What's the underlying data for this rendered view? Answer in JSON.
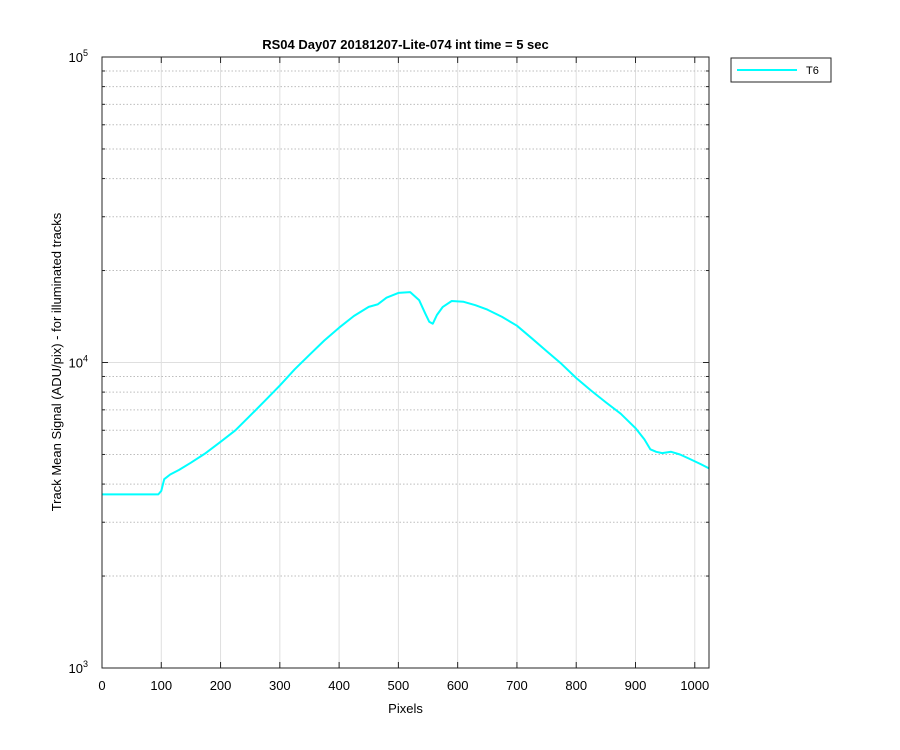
{
  "chart_data": {
    "type": "line",
    "title": "RS04 Day07 20181207-Lite-074 int time = 5 sec",
    "xlabel": "Pixels",
    "ylabel": "Track Mean Signal (ADU/pix) - for illuminated tracks",
    "xlim": [
      0,
      1024
    ],
    "ylim": [
      1000,
      100000
    ],
    "yscale": "log",
    "grid": true,
    "legend_position": "outside-top-right",
    "xticks": [
      "0",
      "100",
      "200",
      "300",
      "400",
      "500",
      "600",
      "700",
      "800",
      "900",
      "1000"
    ],
    "yticks": [
      {
        "value": 1000,
        "base": "10",
        "exp": "3"
      },
      {
        "value": 10000,
        "base": "10",
        "exp": "4"
      },
      {
        "value": 100000,
        "base": "10",
        "exp": "5"
      }
    ],
    "series": [
      {
        "name": "T6",
        "color": "#00ffff",
        "x": [
          0,
          50,
          95,
          100,
          105,
          115,
          130,
          150,
          175,
          200,
          225,
          250,
          275,
          300,
          325,
          350,
          375,
          400,
          425,
          450,
          465,
          480,
          500,
          520,
          535,
          545,
          552,
          558,
          565,
          575,
          590,
          610,
          630,
          650,
          675,
          700,
          725,
          750,
          775,
          800,
          825,
          850,
          875,
          900,
          915,
          925,
          935,
          945,
          960,
          975,
          990,
          1010,
          1024
        ],
        "y": [
          3700,
          3700,
          3700,
          3800,
          4150,
          4300,
          4450,
          4700,
          5050,
          5500,
          6000,
          6700,
          7500,
          8400,
          9500,
          10600,
          11800,
          13000,
          14200,
          15200,
          15500,
          16300,
          16900,
          17000,
          16000,
          14500,
          13600,
          13400,
          14300,
          15200,
          15900,
          15800,
          15400,
          14900,
          14100,
          13200,
          12000,
          10900,
          9900,
          8900,
          8100,
          7400,
          6800,
          6100,
          5600,
          5200,
          5100,
          5050,
          5100,
          5000,
          4850,
          4650,
          4500
        ]
      }
    ]
  }
}
